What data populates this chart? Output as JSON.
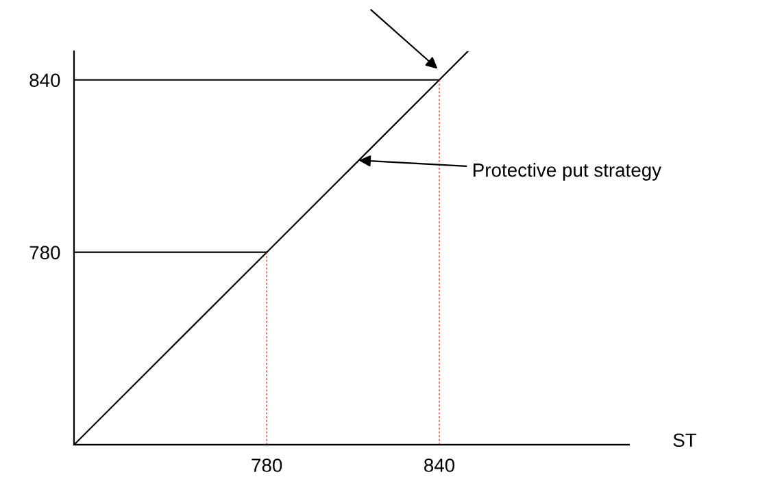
{
  "chart_data": {
    "type": "line",
    "xlabel": "ST",
    "xlim": [
      713,
      906
    ],
    "ylim": [
      713,
      850
    ],
    "xticks": [
      780,
      840
    ],
    "yticks": [
      780,
      840
    ],
    "grid": false,
    "marker": "none",
    "series": [
      {
        "color": "#000000",
        "x": [
          713,
          780,
          840,
          850
        ],
        "values": [
          713,
          780,
          840,
          850
        ],
        "line_style": "solid"
      },
      {
        "color": "#000000",
        "x": [
          713,
          780
        ],
        "values": [
          780,
          780
        ],
        "line_style": "solid"
      },
      {
        "color": "#000000",
        "x": [
          713,
          840
        ],
        "values": [
          840,
          840
        ],
        "line_style": "solid"
      },
      {
        "color": "#e0392b",
        "x": [
          780,
          780
        ],
        "values": [
          713,
          780
        ],
        "line_style": "dotted"
      },
      {
        "color": "#e0392b",
        "x": [
          840,
          840
        ],
        "values": [
          713,
          840
        ],
        "line_style": "dotted"
      }
    ],
    "annotations": [
      {
        "text": "Protective put strategy",
        "x": 812,
        "y": 812
      }
    ]
  }
}
